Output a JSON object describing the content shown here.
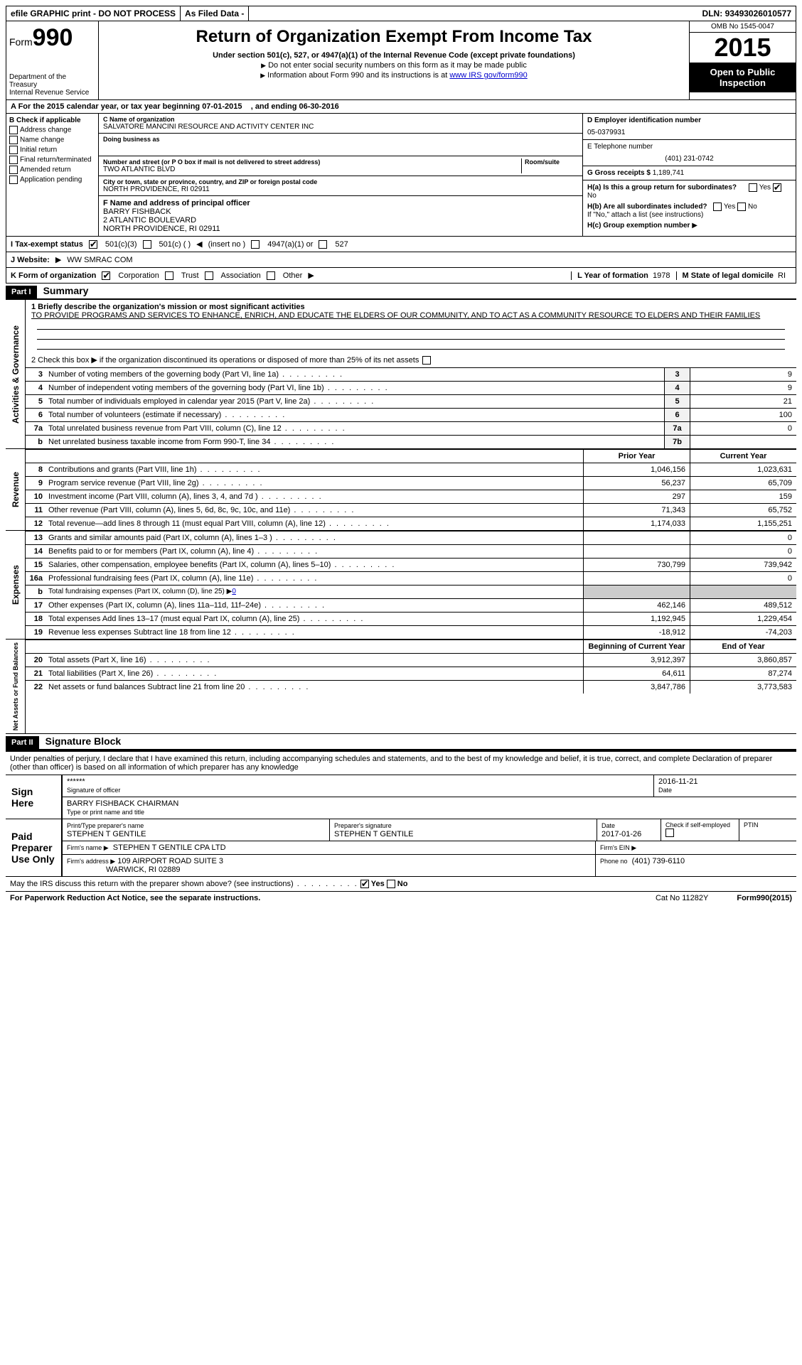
{
  "topbar": {
    "efile": "efile GRAPHIC print - DO NOT PROCESS",
    "asfiled": "As Filed Data -",
    "dln_label": "DLN:",
    "dln": "93493026010577"
  },
  "header": {
    "form_label": "Form",
    "form_number": "990",
    "dept1": "Department of the Treasury",
    "dept2": "Internal Revenue Service",
    "title": "Return of Organization Exempt From Income Tax",
    "subtitle": "Under section 501(c), 527, or 4947(a)(1) of the Internal Revenue Code (except private foundations)",
    "note1": "Do not enter social security numbers on this form as it may be made public",
    "note2": "Information about Form 990 and its instructions is at ",
    "note2_link": "www IRS gov/form990",
    "omb": "OMB No 1545-0047",
    "year": "2015",
    "open": "Open to Public Inspection"
  },
  "rowA": {
    "text_a": "A  For the 2015 calendar year, or tax year beginning 07-01-2015",
    "text_b": ", and ending 06-30-2016"
  },
  "colB": {
    "label": "B  Check if applicable",
    "items": [
      "Address change",
      "Name change",
      "Initial return",
      "Final return/terminated",
      "Amended return",
      "Application pending"
    ]
  },
  "colC": {
    "name_label": "C Name of organization",
    "name": "SALVATORE MANCINI RESOURCE AND ACTIVITY CENTER INC",
    "dba_label": "Doing business as",
    "dba": "",
    "street_label": "Number and street (or P O box if mail is not delivered to street address)",
    "room_label": "Room/suite",
    "street": "TWO ATLANTIC BLVD",
    "city_label": "City or town, state or province, country, and ZIP or foreign postal code",
    "city": "NORTH PROVIDENCE, RI  02911",
    "f_label": "F  Name and address of principal officer",
    "f_name": "BARRY FISHBACK",
    "f_addr1": "2 ATLANTIC BOULEVARD",
    "f_addr2": "NORTH PROVIDENCE, RI  02911"
  },
  "colD": {
    "d_label": "D Employer identification number",
    "d_val": "05-0379931",
    "e_label": "E Telephone number",
    "e_val": "(401) 231-0742",
    "g_label": "G Gross receipts $",
    "g_val": "1,189,741"
  },
  "h": {
    "ha_label": "H(a)  Is this a group return for subordinates?",
    "ha_no": "No",
    "hb_label": "H(b)  Are all subordinates included?",
    "hb_note": "If \"No,\" attach a list  (see instructions)",
    "hc_label": "H(c)  Group exemption number",
    "yes": "Yes",
    "no": "No"
  },
  "rowI": {
    "label": "I  Tax-exempt status",
    "opt1": "501(c)(3)",
    "opt2": "501(c) (  )",
    "opt2b": "(insert no )",
    "opt3": "4947(a)(1) or",
    "opt4": "527"
  },
  "rowJ": {
    "label": "J  Website:",
    "val": "WW SMRAC COM"
  },
  "rowK": {
    "label": "K Form of organization",
    "opts": [
      "Corporation",
      "Trust",
      "Association",
      "Other"
    ],
    "l_label": "L Year of formation",
    "l_val": "1978",
    "m_label": "M State of legal domicile",
    "m_val": "RI"
  },
  "partI": {
    "header": "Part I",
    "title": "Summary",
    "q1_label": "1 Briefly describe the organization's mission or most significant activities",
    "q1_text": "TO PROVIDE PROGRAMS AND SERVICES TO ENHANCE, ENRICH, AND EDUCATE THE ELDERS OF OUR COMMUNITY, AND TO ACT AS A COMMUNITY RESOURCE TO ELDERS AND THEIR FAMILIES",
    "q2": "2  Check this box ▶       if the organization discontinued its operations or disposed of more than 25% of its net assets"
  },
  "governance_lines": [
    {
      "num": "3",
      "desc": "Number of voting members of the governing body (Part VI, line 1a)",
      "box": "3",
      "val": "9"
    },
    {
      "num": "4",
      "desc": "Number of independent voting members of the governing body (Part VI, line 1b)",
      "box": "4",
      "val": "9"
    },
    {
      "num": "5",
      "desc": "Total number of individuals employed in calendar year 2015 (Part V, line 2a)",
      "box": "5",
      "val": "21"
    },
    {
      "num": "6",
      "desc": "Total number of volunteers (estimate if necessary)",
      "box": "6",
      "val": "100"
    },
    {
      "num": "7a",
      "desc": "Total unrelated business revenue from Part VIII, column (C), line 12",
      "box": "7a",
      "val": "0"
    },
    {
      "num": "b",
      "desc": "Net unrelated business taxable income from Form 990-T, line 34",
      "box": "7b",
      "val": ""
    }
  ],
  "col_headers": {
    "prior": "Prior Year",
    "current": "Current Year",
    "boy": "Beginning of Current Year",
    "eoy": "End of Year"
  },
  "revenue_lines": [
    {
      "num": "8",
      "desc": "Contributions and grants (Part VIII, line 1h)",
      "prior": "1,046,156",
      "curr": "1,023,631"
    },
    {
      "num": "9",
      "desc": "Program service revenue (Part VIII, line 2g)",
      "prior": "56,237",
      "curr": "65,709"
    },
    {
      "num": "10",
      "desc": "Investment income (Part VIII, column (A), lines 3, 4, and 7d )",
      "prior": "297",
      "curr": "159"
    },
    {
      "num": "11",
      "desc": "Other revenue (Part VIII, column (A), lines 5, 6d, 8c, 9c, 10c, and 11e)",
      "prior": "71,343",
      "curr": "65,752"
    },
    {
      "num": "12",
      "desc": "Total revenue—add lines 8 through 11 (must equal Part VIII, column (A), line 12)",
      "prior": "1,174,033",
      "curr": "1,155,251"
    }
  ],
  "expense_lines": [
    {
      "num": "13",
      "desc": "Grants and similar amounts paid (Part IX, column (A), lines 1–3 )",
      "prior": "",
      "curr": "0"
    },
    {
      "num": "14",
      "desc": "Benefits paid to or for members (Part IX, column (A), line 4)",
      "prior": "",
      "curr": "0"
    },
    {
      "num": "15",
      "desc": "Salaries, other compensation, employee benefits (Part IX, column (A), lines 5–10)",
      "prior": "730,799",
      "curr": "739,942"
    },
    {
      "num": "16a",
      "desc": "Professional fundraising fees (Part IX, column (A), line 11e)",
      "prior": "",
      "curr": "0"
    },
    {
      "num": "b",
      "desc": "Total fundraising expenses (Part IX, column (D), line 25) ▶",
      "prior": "",
      "curr": "",
      "special": "0"
    },
    {
      "num": "17",
      "desc": "Other expenses (Part IX, column (A), lines 11a–11d, 11f–24e)",
      "prior": "462,146",
      "curr": "489,512"
    },
    {
      "num": "18",
      "desc": "Total expenses  Add lines 13–17 (must equal Part IX, column (A), line 25)",
      "prior": "1,192,945",
      "curr": "1,229,454"
    },
    {
      "num": "19",
      "desc": "Revenue less expenses  Subtract line 18 from line 12",
      "prior": "-18,912",
      "curr": "-74,203"
    }
  ],
  "netassets_lines": [
    {
      "num": "20",
      "desc": "Total assets (Part X, line 16)",
      "prior": "3,912,397",
      "curr": "3,860,857"
    },
    {
      "num": "21",
      "desc": "Total liabilities (Part X, line 26)",
      "prior": "64,611",
      "curr": "87,274"
    },
    {
      "num": "22",
      "desc": "Net assets or fund balances  Subtract line 21 from line 20",
      "prior": "3,847,786",
      "curr": "3,773,583"
    }
  ],
  "vtabs": {
    "gov": "Activities & Governance",
    "rev": "Revenue",
    "exp": "Expenses",
    "net": "Net Assets or Fund Balances"
  },
  "partII": {
    "header": "Part II",
    "title": "Signature Block",
    "para": "Under penalties of perjury, I declare that I have examined this return, including accompanying schedules and statements, and to the best of my knowledge and belief, it is true, correct, and complete  Declaration of preparer (other than officer) is based on all information of which preparer has any knowledge"
  },
  "sign": {
    "label": "Sign Here",
    "stars": "******",
    "sig_label": "Signature of officer",
    "date_label": "Date",
    "date": "2016-11-21",
    "name": "BARRY FISHBACK CHAIRMAN",
    "name_label": "Type or print name and title"
  },
  "paid": {
    "label": "Paid Preparer Use Only",
    "prep_name_label": "Print/Type preparer's name",
    "prep_name": "STEPHEN T GENTILE",
    "prep_sig_label": "Preparer's signature",
    "prep_sig": "STEPHEN T GENTILE",
    "prep_date_label": "Date",
    "prep_date": "2017-01-26",
    "check_label": "Check        if self-employed",
    "ptin_label": "PTIN",
    "firm_name_label": "Firm's name    ▶",
    "firm_name": "STEPHEN T GENTILE CPA LTD",
    "firm_ein_label": "Firm's EIN ▶",
    "firm_addr_label": "Firm's address ▶",
    "firm_addr1": "109 AIRPORT ROAD SUITE 3",
    "firm_addr2": "WARWICK, RI  02889",
    "phone_label": "Phone no",
    "phone": "(401) 739-6110"
  },
  "footer": {
    "q": "May the IRS discuss this return with the preparer shown above? (see instructions)",
    "yes": "Yes",
    "no": "No",
    "pra": "For Paperwork Reduction Act Notice, see the separate instructions.",
    "cat": "Cat No  11282Y",
    "form": "Form",
    "formno": "990",
    "formyear": "(2015)"
  }
}
